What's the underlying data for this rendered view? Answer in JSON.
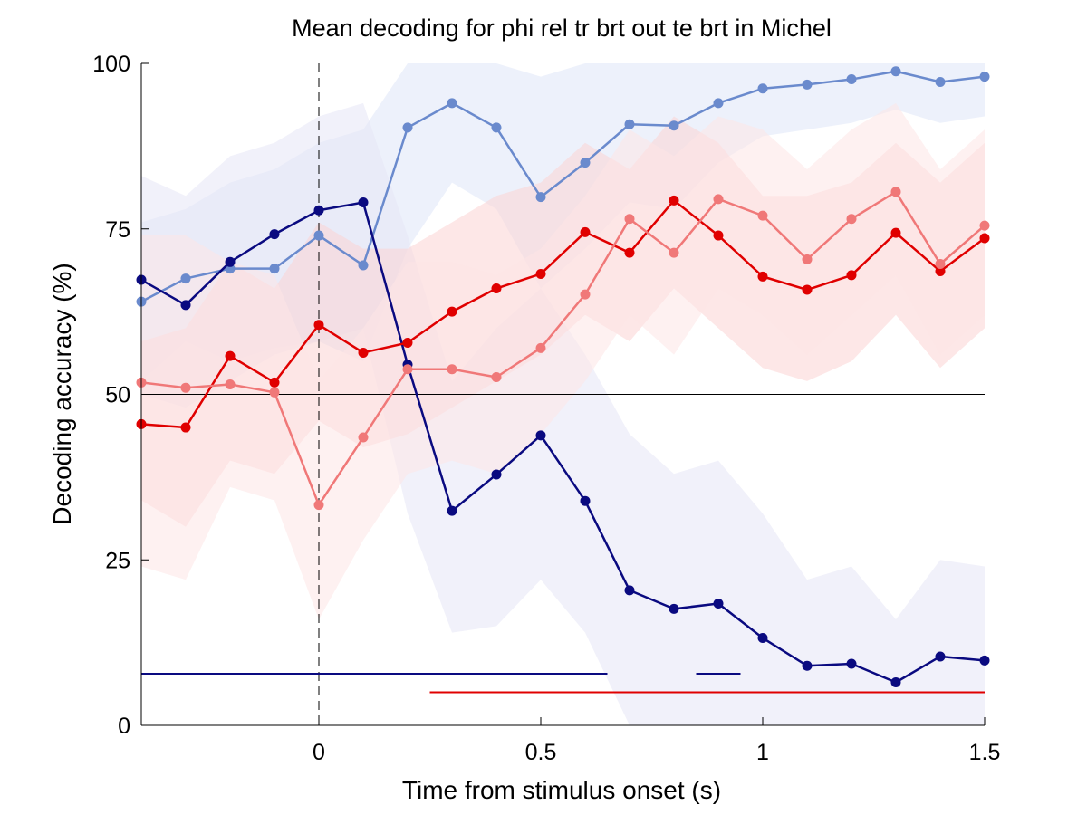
{
  "chart_data": {
    "type": "line",
    "title": "Mean decoding for phi rel tr brt out te brt in  Michel",
    "xlabel": "Time from stimulus onset (s)",
    "ylabel": "Decoding accuracy (%)",
    "xlim": [
      -0.4,
      1.5
    ],
    "ylim": [
      0,
      100
    ],
    "xticks": [
      0,
      0.5,
      1,
      1.5
    ],
    "xtick_labels": [
      "0",
      "0.5",
      "1",
      "1.5"
    ],
    "yticks": [
      0,
      25,
      50,
      75,
      100
    ],
    "ytick_labels": [
      "0",
      "25",
      "50",
      "75",
      "100"
    ],
    "grid": false,
    "legend": "none",
    "chance_level": 50,
    "onset_marker_x": 0,
    "x": [
      -0.4,
      -0.3,
      -0.2,
      -0.1,
      0,
      0.1,
      0.2,
      0.3,
      0.4,
      0.5,
      0.6,
      0.7,
      0.8,
      0.9,
      1.0,
      1.1,
      1.2,
      1.3,
      1.4,
      1.5
    ],
    "series": [
      {
        "color": "#6a8acd",
        "band_color": "#dfe6f8",
        "values": [
          64,
          67.5,
          69,
          69,
          74,
          69.5,
          90.3,
          94,
          90.3,
          79.8,
          85,
          90.8,
          90.6,
          94,
          96.2,
          96.8,
          97.6,
          98.8,
          97.2,
          98
        ],
        "band_low": [
          52,
          58,
          55,
          57,
          58,
          55,
          72,
          82,
          78,
          66,
          72,
          79,
          78,
          85,
          89,
          90,
          91,
          93,
          91,
          92
        ],
        "band_high": [
          76,
          78,
          82,
          84,
          88,
          90,
          100,
          100,
          100,
          98,
          100,
          100,
          100,
          100,
          100,
          100,
          100,
          100,
          100,
          100
        ]
      },
      {
        "color": "#0a0a80",
        "band_color": "#e6e6f6",
        "values": [
          67.3,
          63.5,
          70,
          74.2,
          77.8,
          79,
          54.5,
          32.4,
          37.9,
          43.8,
          33.9,
          20.4,
          17.6,
          18.4,
          13.2,
          9,
          9.3,
          6.5,
          10.4,
          9.8
        ],
        "band_low": [
          50,
          48,
          52,
          56,
          58,
          60,
          32,
          14,
          15,
          22,
          14,
          0,
          0,
          0,
          0,
          0,
          0,
          0,
          0,
          0
        ],
        "band_high": [
          83,
          80,
          86,
          88,
          92,
          94,
          74,
          52,
          60,
          66,
          56,
          44,
          38,
          40,
          32,
          22,
          24,
          16,
          25,
          24
        ]
      },
      {
        "color": "#e00000",
        "band_color": "#fbd3d3",
        "values": [
          45.5,
          45,
          55.8,
          51.8,
          60.5,
          56.3,
          57.8,
          62.5,
          66,
          68.2,
          74.5,
          71.4,
          79.3,
          74,
          67.8,
          65.8,
          68,
          74.4,
          68.6,
          73.6
        ],
        "band_low": [
          34,
          30,
          40,
          38,
          46,
          42,
          44,
          48,
          52,
          56,
          62,
          58,
          66,
          60,
          54,
          52,
          55,
          62,
          54,
          60
        ],
        "band_high": [
          58,
          60,
          70,
          66,
          76,
          72,
          72,
          76,
          80,
          82,
          88,
          84,
          92,
          88,
          80,
          80,
          82,
          88,
          82,
          88
        ]
      },
      {
        "color": "#f07878",
        "band_color": "#fde6e6",
        "values": [
          51.8,
          51,
          51.5,
          50.3,
          33.3,
          43.5,
          53.8,
          53.8,
          52.6,
          57,
          65.1,
          76.5,
          71.4,
          79.5,
          77,
          70.4,
          76.5,
          80.6,
          69.7,
          75.5
        ],
        "band_low": [
          24,
          22,
          36,
          34,
          16,
          28,
          38,
          40,
          38,
          44,
          52,
          62,
          56,
          66,
          62,
          56,
          62,
          68,
          56,
          62
        ],
        "band_high": [
          74,
          74,
          70,
          68,
          52,
          60,
          70,
          70,
          68,
          72,
          80,
          90,
          86,
          92,
          90,
          84,
          90,
          94,
          84,
          90
        ]
      }
    ],
    "significance_bars": [
      {
        "color": "#0a0a80",
        "y": 7.8,
        "segments": [
          [
            -0.4,
            0.65
          ],
          [
            0.85,
            0.95
          ]
        ]
      },
      {
        "color": "#e00000",
        "y": 5.0,
        "segments": [
          [
            0.25,
            1.5
          ]
        ]
      }
    ]
  }
}
